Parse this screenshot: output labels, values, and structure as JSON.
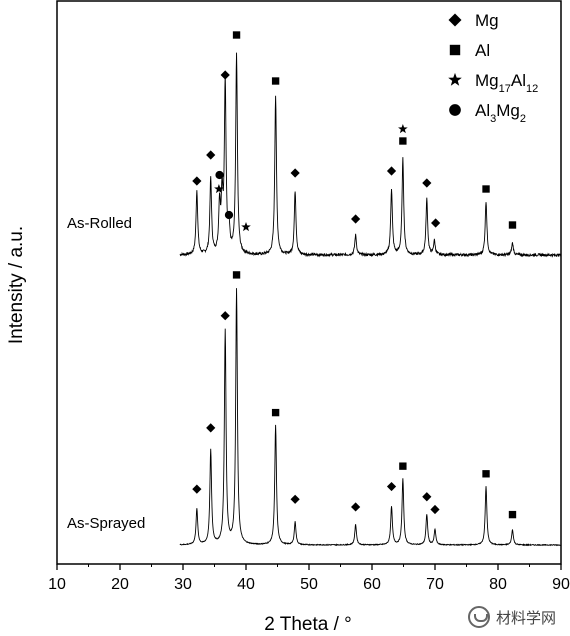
{
  "chart_data": {
    "type": "line",
    "title": "",
    "xlabel": "2 Theta / °",
    "ylabel": "Intensity / a.u.",
    "xlim": [
      10,
      90
    ],
    "xticks": [
      10,
      20,
      30,
      40,
      50,
      60,
      70,
      80,
      90
    ],
    "yticks_shown": false,
    "legend": {
      "position": "top-right",
      "entries": [
        {
          "marker": "diamond",
          "html": "Mg"
        },
        {
          "marker": "square",
          "html": "Al"
        },
        {
          "marker": "star",
          "html": "Mg<tspan baseline-shift=\"sub\" font-size=\"11\">17</tspan>Al<tspan baseline-shift=\"sub\" font-size=\"11\">12</tspan>"
        },
        {
          "marker": "circle",
          "html": "Al<tspan baseline-shift=\"sub\" font-size=\"11\">3</tspan>Mg<tspan baseline-shift=\"sub\" font-size=\"11\">2</tspan>"
        }
      ],
      "labels": [
        "Mg",
        "Al",
        "Mg17Al12",
        "Al3Mg2"
      ]
    },
    "series": [
      {
        "name": "As-Rolled",
        "baseline": 0.0,
        "peaks": [
          {
            "x": 32.2,
            "h": 0.32
          },
          {
            "x": 34.4,
            "h": 0.38
          },
          {
            "x": 35.8,
            "h": 0.24
          },
          {
            "x": 36.2,
            "h": 0.28
          },
          {
            "x": 36.7,
            "h": 0.85
          },
          {
            "x": 37.3,
            "h": 0.12
          },
          {
            "x": 38.5,
            "h": 1.0
          },
          {
            "x": 44.7,
            "h": 0.8
          },
          {
            "x": 47.8,
            "h": 0.32
          },
          {
            "x": 57.4,
            "h": 0.1
          },
          {
            "x": 63.1,
            "h": 0.33
          },
          {
            "x": 64.9,
            "h": 0.48
          },
          {
            "x": 68.7,
            "h": 0.28
          },
          {
            "x": 69.9,
            "h": 0.07
          },
          {
            "x": 78.1,
            "h": 0.27
          },
          {
            "x": 82.3,
            "h": 0.06
          }
        ],
        "markers": [
          {
            "type": "diamond",
            "x": 32.2,
            "h": 0.32
          },
          {
            "type": "diamond",
            "x": 34.4,
            "h": 0.45
          },
          {
            "type": "circle",
            "x": 35.8,
            "h": 0.35
          },
          {
            "type": "star",
            "x": 35.7,
            "h": 0.28
          },
          {
            "type": "diamond",
            "x": 36.7,
            "h": 0.85
          },
          {
            "type": "circle",
            "x": 37.3,
            "h": 0.15
          },
          {
            "type": "square",
            "x": 38.5,
            "h": 1.05
          },
          {
            "type": "star",
            "x": 40.0,
            "h": 0.09
          },
          {
            "type": "square",
            "x": 44.7,
            "h": 0.82
          },
          {
            "type": "diamond",
            "x": 47.8,
            "h": 0.36
          },
          {
            "type": "diamond",
            "x": 57.4,
            "h": 0.13
          },
          {
            "type": "diamond",
            "x": 63.1,
            "h": 0.37
          },
          {
            "type": "square",
            "x": 64.9,
            "h": 0.52
          },
          {
            "type": "star",
            "x": 64.9,
            "h": 0.58
          },
          {
            "type": "diamond",
            "x": 68.7,
            "h": 0.31
          },
          {
            "type": "diamond",
            "x": 70.1,
            "h": 0.11
          },
          {
            "type": "square",
            "x": 78.1,
            "h": 0.28
          },
          {
            "type": "square",
            "x": 82.3,
            "h": 0.1
          }
        ]
      },
      {
        "name": "As-Sprayed",
        "baseline": 0.0,
        "peaks": [
          {
            "x": 32.2,
            "h": 0.14
          },
          {
            "x": 34.4,
            "h": 0.37
          },
          {
            "x": 36.7,
            "h": 0.84
          },
          {
            "x": 38.5,
            "h": 1.0
          },
          {
            "x": 44.7,
            "h": 0.47
          },
          {
            "x": 47.8,
            "h": 0.09
          },
          {
            "x": 57.4,
            "h": 0.08
          },
          {
            "x": 63.1,
            "h": 0.15
          },
          {
            "x": 64.9,
            "h": 0.26
          },
          {
            "x": 68.7,
            "h": 0.12
          },
          {
            "x": 70.0,
            "h": 0.06
          },
          {
            "x": 78.1,
            "h": 0.23
          },
          {
            "x": 82.3,
            "h": 0.06
          }
        ],
        "markers": [
          {
            "type": "diamond",
            "x": 32.2,
            "h": 0.18
          },
          {
            "type": "diamond",
            "x": 34.4,
            "h": 0.42
          },
          {
            "type": "diamond",
            "x": 36.7,
            "h": 0.86
          },
          {
            "type": "square",
            "x": 38.5,
            "h": 1.02
          },
          {
            "type": "square",
            "x": 44.7,
            "h": 0.48
          },
          {
            "type": "diamond",
            "x": 47.8,
            "h": 0.14
          },
          {
            "type": "diamond",
            "x": 57.4,
            "h": 0.11
          },
          {
            "type": "diamond",
            "x": 63.1,
            "h": 0.19
          },
          {
            "type": "square",
            "x": 64.9,
            "h": 0.27
          },
          {
            "type": "diamond",
            "x": 68.7,
            "h": 0.15
          },
          {
            "type": "diamond",
            "x": 70.0,
            "h": 0.1
          },
          {
            "type": "square",
            "x": 78.1,
            "h": 0.24
          },
          {
            "type": "square",
            "x": 82.3,
            "h": 0.08
          }
        ]
      }
    ]
  },
  "watermark": {
    "text": "材料学网"
  }
}
